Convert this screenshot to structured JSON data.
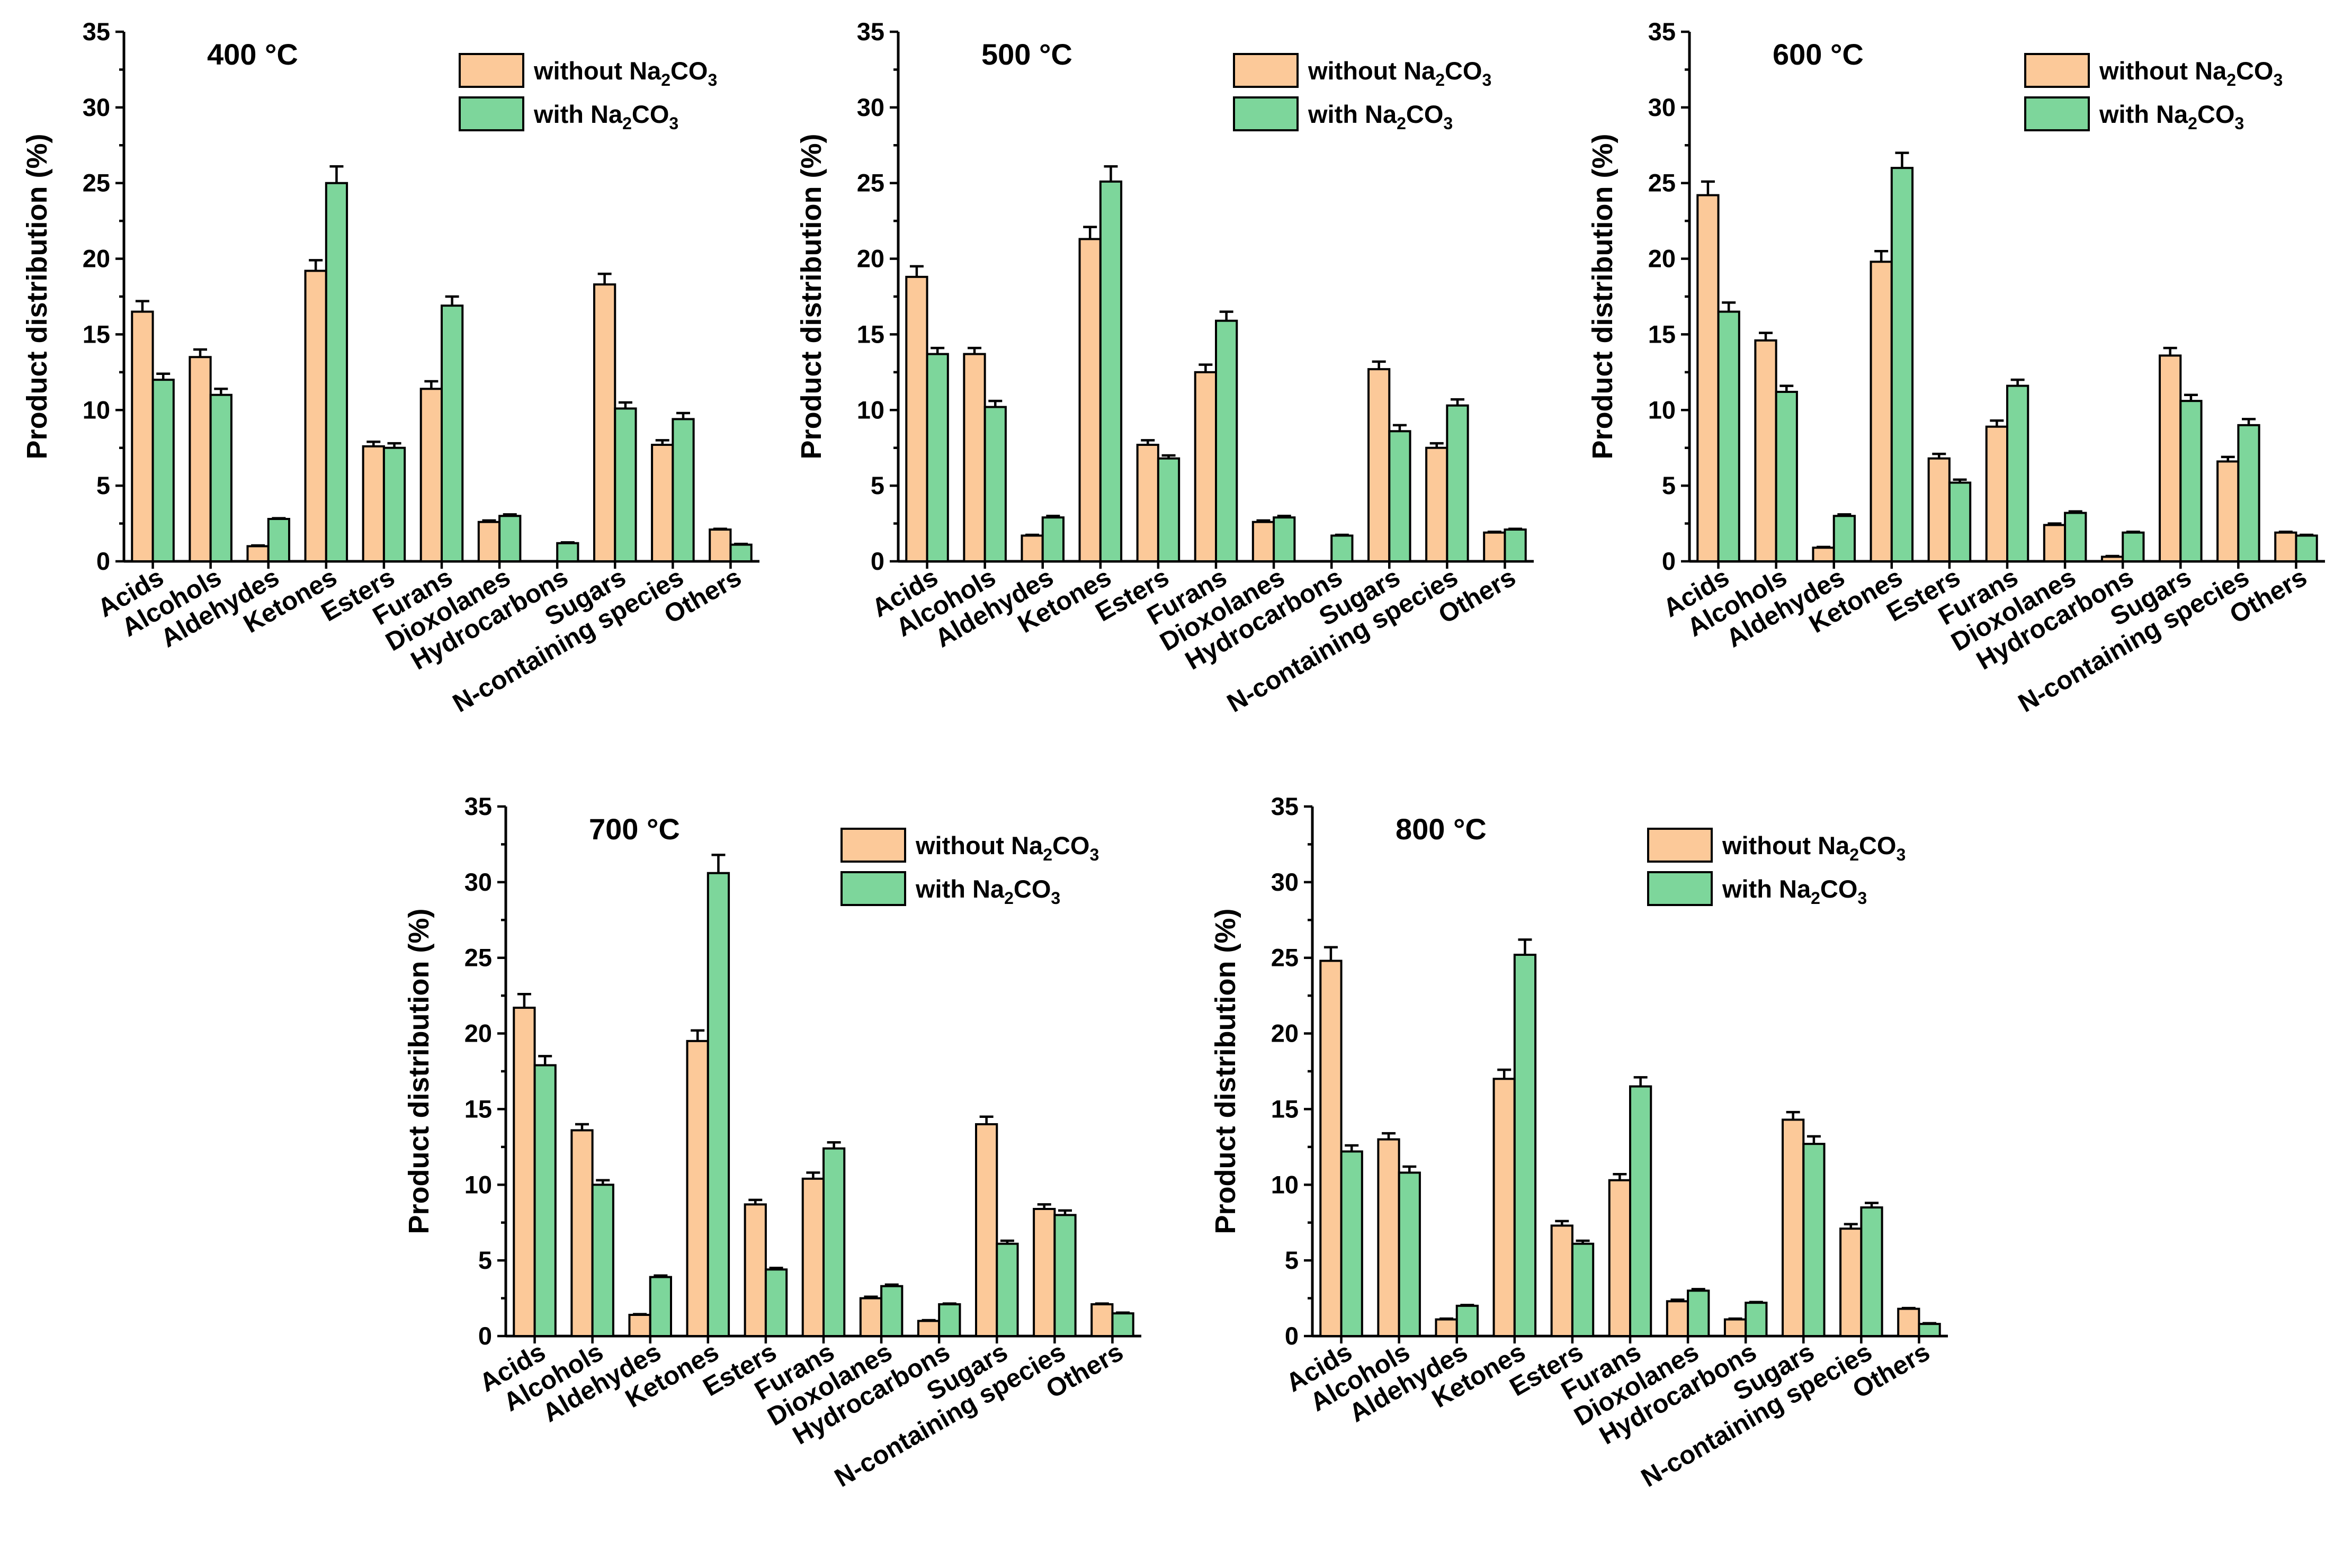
{
  "chart_data": [
    {
      "type": "bar",
      "title": "400 °C",
      "ylabel": "Product distribution (%)",
      "xlabel": "",
      "ylim": [
        0,
        35
      ],
      "yticks": [
        0,
        5,
        10,
        15,
        20,
        25,
        30,
        35
      ],
      "legend": "top-right",
      "categories": [
        "Acids",
        "Alcohols",
        "Aldehydes",
        "Ketones",
        "Esters",
        "Furans",
        "Dioxolanes",
        "Hydrocarbons",
        "Sugars",
        "N-containing species",
        "Others"
      ],
      "series": [
        {
          "name": "without Na2CO3",
          "name_main": "without Na",
          "name_sub1": "2",
          "name_mid": "CO",
          "name_sub2": "3",
          "color": "#fcc999",
          "values": [
            16.5,
            13.5,
            1.0,
            19.2,
            7.6,
            11.4,
            2.6,
            0.0,
            18.3,
            7.7,
            2.1
          ],
          "errors": [
            0.7,
            0.5,
            0.05,
            0.7,
            0.3,
            0.5,
            0.1,
            0.0,
            0.7,
            0.3,
            0.05
          ]
        },
        {
          "name": "with Na2CO3",
          "name_main": "with Na",
          "name_sub1": "2",
          "name_mid": "CO",
          "name_sub2": "3",
          "color": "#7dd69b",
          "values": [
            12.0,
            11.0,
            2.8,
            25.0,
            7.5,
            16.9,
            3.0,
            1.2,
            10.1,
            9.4,
            1.1
          ],
          "errors": [
            0.4,
            0.4,
            0.05,
            1.1,
            0.3,
            0.6,
            0.1,
            0.05,
            0.4,
            0.4,
            0.05
          ]
        }
      ]
    },
    {
      "type": "bar",
      "title": "500 °C",
      "ylabel": "Product distribution (%)",
      "xlabel": "",
      "ylim": [
        0,
        35
      ],
      "yticks": [
        0,
        5,
        10,
        15,
        20,
        25,
        30,
        35
      ],
      "legend": "top-right",
      "categories": [
        "Acids",
        "Alcohols",
        "Aldehydes",
        "Ketones",
        "Esters",
        "Furans",
        "Dioxolanes",
        "Hydrocarbons",
        "Sugars",
        "N-containing species",
        "Others"
      ],
      "series": [
        {
          "name": "without Na2CO3",
          "name_main": "without Na",
          "name_sub1": "2",
          "name_mid": "CO",
          "name_sub2": "3",
          "color": "#fcc999",
          "values": [
            18.8,
            13.7,
            1.7,
            21.3,
            7.7,
            12.5,
            2.6,
            0.0,
            12.7,
            7.5,
            1.9
          ],
          "errors": [
            0.7,
            0.4,
            0.05,
            0.8,
            0.3,
            0.5,
            0.1,
            0.0,
            0.5,
            0.3,
            0.05
          ]
        },
        {
          "name": "with Na2CO3",
          "name_main": "with Na",
          "name_sub1": "2",
          "name_mid": "CO",
          "name_sub2": "3",
          "color": "#7dd69b",
          "values": [
            13.7,
            10.2,
            2.9,
            25.1,
            6.8,
            15.9,
            2.9,
            1.7,
            8.6,
            10.3,
            2.1
          ],
          "errors": [
            0.4,
            0.4,
            0.1,
            1.0,
            0.2,
            0.6,
            0.1,
            0.05,
            0.4,
            0.4,
            0.05
          ]
        }
      ]
    },
    {
      "type": "bar",
      "title": "600 °C",
      "ylabel": "Product distribution (%)",
      "xlabel": "",
      "ylim": [
        0,
        35
      ],
      "yticks": [
        0,
        5,
        10,
        15,
        20,
        25,
        30,
        35
      ],
      "legend": "top-right",
      "categories": [
        "Acids",
        "Alcohols",
        "Aldehydes",
        "Ketones",
        "Esters",
        "Furans",
        "Dioxolanes",
        "Hydrocarbons",
        "Sugars",
        "N-containing species",
        "Others"
      ],
      "series": [
        {
          "name": "without Na2CO3",
          "name_main": "without Na",
          "name_sub1": "2",
          "name_mid": "CO",
          "name_sub2": "3",
          "color": "#fcc999",
          "values": [
            24.2,
            14.6,
            0.9,
            19.8,
            6.8,
            8.9,
            2.4,
            0.3,
            13.6,
            6.6,
            1.9
          ],
          "errors": [
            0.9,
            0.5,
            0.05,
            0.7,
            0.3,
            0.4,
            0.1,
            0.05,
            0.5,
            0.3,
            0.05
          ]
        },
        {
          "name": "with Na2CO3",
          "name_main": "with Na",
          "name_sub1": "2",
          "name_mid": "CO",
          "name_sub2": "3",
          "color": "#7dd69b",
          "values": [
            16.5,
            11.2,
            3.0,
            26.0,
            5.2,
            11.6,
            3.2,
            1.9,
            10.6,
            9.0,
            1.7
          ],
          "errors": [
            0.6,
            0.4,
            0.1,
            1.0,
            0.2,
            0.4,
            0.1,
            0.05,
            0.4,
            0.4,
            0.05
          ]
        }
      ]
    },
    {
      "type": "bar",
      "title": "700 °C",
      "ylabel": "Product distribution (%)",
      "xlabel": "",
      "ylim": [
        0,
        35
      ],
      "yticks": [
        0,
        5,
        10,
        15,
        20,
        25,
        30,
        35
      ],
      "legend": "top-right",
      "categories": [
        "Acids",
        "Alcohols",
        "Aldehydes",
        "Ketones",
        "Esters",
        "Furans",
        "Dioxolanes",
        "Hydrocarbons",
        "Sugars",
        "N-containing species",
        "Others"
      ],
      "series": [
        {
          "name": "without Na2CO3",
          "name_main": "without Na",
          "name_sub1": "2",
          "name_mid": "CO",
          "name_sub2": "3",
          "color": "#fcc999",
          "values": [
            21.7,
            13.6,
            1.4,
            19.5,
            8.7,
            10.4,
            2.5,
            1.0,
            14.0,
            8.4,
            2.1
          ],
          "errors": [
            0.9,
            0.4,
            0.05,
            0.7,
            0.3,
            0.4,
            0.1,
            0.05,
            0.5,
            0.3,
            0.05
          ]
        },
        {
          "name": "with Na2CO3",
          "name_main": "with Na",
          "name_sub1": "2",
          "name_mid": "CO",
          "name_sub2": "3",
          "color": "#7dd69b",
          "values": [
            17.9,
            10.0,
            3.9,
            30.6,
            4.4,
            12.4,
            3.3,
            2.1,
            6.1,
            8.0,
            1.5
          ],
          "errors": [
            0.6,
            0.3,
            0.1,
            1.2,
            0.1,
            0.4,
            0.1,
            0.05,
            0.2,
            0.3,
            0.05
          ]
        }
      ]
    },
    {
      "type": "bar",
      "title": "800 °C",
      "ylabel": "Product distribution (%)",
      "xlabel": "",
      "ylim": [
        0,
        35
      ],
      "yticks": [
        0,
        5,
        10,
        15,
        20,
        25,
        30,
        35
      ],
      "legend": "top-right",
      "categories": [
        "Acids",
        "Alcohols",
        "Aldehydes",
        "Ketones",
        "Esters",
        "Furans",
        "Dioxolanes",
        "Hydrocarbons",
        "Sugars",
        "N-containing species",
        "Others"
      ],
      "series": [
        {
          "name": "without Na2CO3",
          "name_main": "without Na",
          "name_sub1": "2",
          "name_mid": "CO",
          "name_sub2": "3",
          "color": "#fcc999",
          "values": [
            24.8,
            13.0,
            1.1,
            17.0,
            7.3,
            10.3,
            2.3,
            1.1,
            14.3,
            7.1,
            1.8
          ],
          "errors": [
            0.9,
            0.4,
            0.05,
            0.6,
            0.3,
            0.4,
            0.1,
            0.05,
            0.5,
            0.3,
            0.05
          ]
        },
        {
          "name": "with Na2CO3",
          "name_main": "with Na",
          "name_sub1": "2",
          "name_mid": "CO",
          "name_sub2": "3",
          "color": "#7dd69b",
          "values": [
            12.2,
            10.8,
            2.0,
            25.2,
            6.1,
            16.5,
            3.0,
            2.2,
            12.7,
            8.5,
            0.8
          ],
          "errors": [
            0.4,
            0.4,
            0.05,
            1.0,
            0.2,
            0.6,
            0.1,
            0.05,
            0.5,
            0.3,
            0.05
          ]
        }
      ]
    }
  ]
}
